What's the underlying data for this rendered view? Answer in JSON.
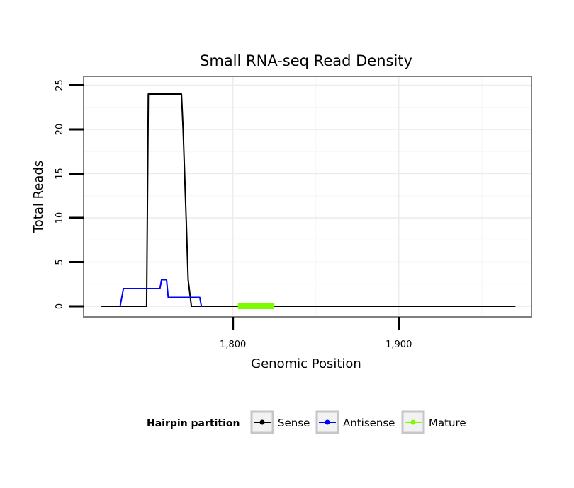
{
  "chart_data": {
    "type": "line",
    "title": "Small RNA-seq Read Density",
    "xlabel": "Genomic Position",
    "ylabel": "Total Reads",
    "xlim": [
      1710,
      1980
    ],
    "ylim": [
      -1.2,
      26
    ],
    "x_ticks": [
      1800,
      1900
    ],
    "x_tick_labels": [
      "1,800",
      "1,900"
    ],
    "y_ticks": [
      0,
      5,
      10,
      15,
      20,
      25
    ],
    "y_tick_labels": [
      "0",
      "5",
      "10",
      "15",
      "20",
      "25"
    ],
    "grid": true,
    "legend": {
      "title": "Hairpin partition",
      "position": "bottom",
      "entries": [
        "Sense",
        "Antisense",
        "Mature"
      ]
    },
    "series": [
      {
        "name": "Sense",
        "color": "#000000",
        "x": [
          1721,
          1748,
          1749,
          1769,
          1770,
          1772,
          1773,
          1775,
          1970
        ],
        "y": [
          0,
          0,
          24,
          24,
          20,
          9,
          3,
          0,
          0
        ]
      },
      {
        "name": "Antisense",
        "color": "#0000ff",
        "x": [
          1732,
          1734,
          1756,
          1757,
          1760,
          1761,
          1780,
          1781
        ],
        "y": [
          0,
          2,
          2,
          3,
          3,
          1,
          1,
          0
        ]
      },
      {
        "name": "Mature",
        "color": "#7cfc00",
        "x": [
          1803,
          1825
        ],
        "y": [
          0,
          0
        ]
      }
    ]
  }
}
